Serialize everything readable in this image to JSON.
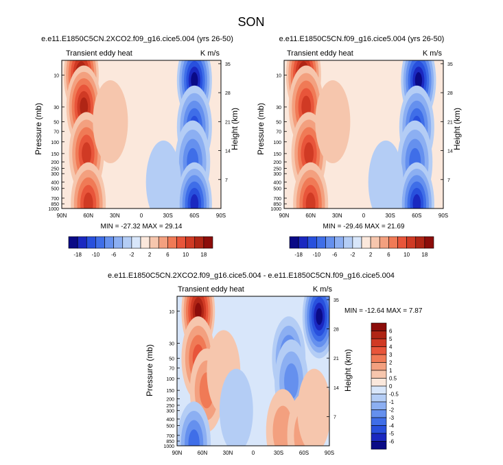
{
  "page_title": "SON",
  "chart_data": [
    {
      "type": "heatmap",
      "title": "e.e11.E1850C5CN.2XCO2.f09_g16.cice5.004 (yrs 26-50)",
      "left_string": "Transient eddy heat",
      "right_string": "K m/s",
      "ylabel": "Pressure (mb)",
      "ylabel_right": "Height (km)",
      "x_ticks": [
        "90N",
        "60N",
        "30N",
        "0",
        "30S",
        "60S",
        "90S"
      ],
      "y_ticks": [
        "10",
        "30",
        "50",
        "70",
        "100",
        "150",
        "200",
        "250",
        "300",
        "400",
        "500",
        "700",
        "850",
        "1000"
      ],
      "y_ticks_right": [
        "35",
        "28",
        "21",
        "14",
        "7"
      ],
      "stats": "MIN = -27.32   MAX = 29.14",
      "features": [
        {
          "lat": 68,
          "p": 10,
          "value": 22
        },
        {
          "lat": 65,
          "p": 30,
          "value": 14
        },
        {
          "lat": 62,
          "p": 150,
          "value": 11
        },
        {
          "lat": 60,
          "p": 850,
          "value": 10
        },
        {
          "lat": 35,
          "p": 50,
          "value": 3
        },
        {
          "lat": -60,
          "p": 12,
          "value": -22
        },
        {
          "lat": -60,
          "p": 60,
          "value": -12
        },
        {
          "lat": -58,
          "p": 200,
          "value": -9
        },
        {
          "lat": -60,
          "p": 850,
          "value": -16
        },
        {
          "lat": -25,
          "p": 400,
          "value": -2
        }
      ]
    },
    {
      "type": "heatmap",
      "title": "e.e11.E1850C5CN.f09_g16.cice5.004 (yrs 26-50)",
      "left_string": "Transient eddy heat",
      "right_string": "K m/s",
      "ylabel": "Pressure (mb)",
      "ylabel_right": "Height (km)",
      "x_ticks": [
        "90N",
        "60N",
        "30N",
        "0",
        "30S",
        "60S",
        "90S"
      ],
      "y_ticks": [
        "10",
        "30",
        "50",
        "70",
        "100",
        "150",
        "200",
        "250",
        "300",
        "400",
        "500",
        "700",
        "850",
        "1000"
      ],
      "y_ticks_right": [
        "35",
        "28",
        "21",
        "14",
        "7"
      ],
      "stats": "MIN = -29.46   MAX = 21.69",
      "features": [
        {
          "lat": 68,
          "p": 10,
          "value": 20
        },
        {
          "lat": 65,
          "p": 30,
          "value": 13
        },
        {
          "lat": 62,
          "p": 150,
          "value": 11
        },
        {
          "lat": 60,
          "p": 850,
          "value": 10
        },
        {
          "lat": 35,
          "p": 50,
          "value": 3
        },
        {
          "lat": -62,
          "p": 12,
          "value": -24
        },
        {
          "lat": -60,
          "p": 60,
          "value": -13
        },
        {
          "lat": -58,
          "p": 200,
          "value": -9
        },
        {
          "lat": -60,
          "p": 850,
          "value": -16
        },
        {
          "lat": -25,
          "p": 400,
          "value": -2
        }
      ]
    },
    {
      "type": "heatmap",
      "title": "e.e11.E1850C5CN.2XCO2.f09_g16.cice5.004 - e.e11.E1850C5CN.f09_g16.cice5.004",
      "left_string": "Transient eddy heat",
      "right_string": "K m/s",
      "ylabel": "Pressure (mb)",
      "ylabel_right": "Height (km)",
      "x_ticks": [
        "90N",
        "60N",
        "30N",
        "0",
        "30S",
        "60S",
        "90S"
      ],
      "y_ticks": [
        "10",
        "30",
        "50",
        "70",
        "100",
        "150",
        "200",
        "250",
        "300",
        "400",
        "500",
        "700",
        "850",
        "1000"
      ],
      "y_ticks_right": [
        "35",
        "28",
        "21",
        "14",
        "7"
      ],
      "stats": "MIN = -12.64   MAX =  7.87",
      "features": [
        {
          "lat": 65,
          "p": 10,
          "value": 7
        },
        {
          "lat": 65,
          "p": 50,
          "value": 3
        },
        {
          "lat": 55,
          "p": 150,
          "value": 2
        },
        {
          "lat": 35,
          "p": 80,
          "value": 0.6
        },
        {
          "lat": 70,
          "p": 920,
          "value": -3
        },
        {
          "lat": 20,
          "p": 300,
          "value": -0.7
        },
        {
          "lat": -42,
          "p": 50,
          "value": -3
        },
        {
          "lat": -45,
          "p": 110,
          "value": -2
        },
        {
          "lat": -78,
          "p": 12,
          "value": -6
        },
        {
          "lat": -35,
          "p": 600,
          "value": 1.5
        },
        {
          "lat": -60,
          "p": 700,
          "value": 1
        },
        {
          "lat": -72,
          "p": 300,
          "value": 0.8
        }
      ]
    }
  ],
  "colorbar_top": {
    "labels": [
      "-18",
      "-10",
      "-6",
      "-2",
      "2",
      "6",
      "10",
      "18"
    ]
  },
  "colorbar_diff": {
    "labels": [
      "6",
      "5",
      "4",
      "3",
      "2",
      "1",
      "0.5",
      "0",
      "-0.5",
      "-1",
      "-2",
      "-3",
      "-4",
      "-5",
      "-6"
    ]
  },
  "palette": [
    "#0a0a86",
    "#1a28c0",
    "#2850dd",
    "#3f6ee8",
    "#6590ee",
    "#8caff2",
    "#b4cdf5",
    "#d8e6fa",
    "#fbe8dc",
    "#f6c6ad",
    "#f3a07f",
    "#f07a56",
    "#e8553a",
    "#d03a24",
    "#b02515",
    "#8c0d0a"
  ]
}
